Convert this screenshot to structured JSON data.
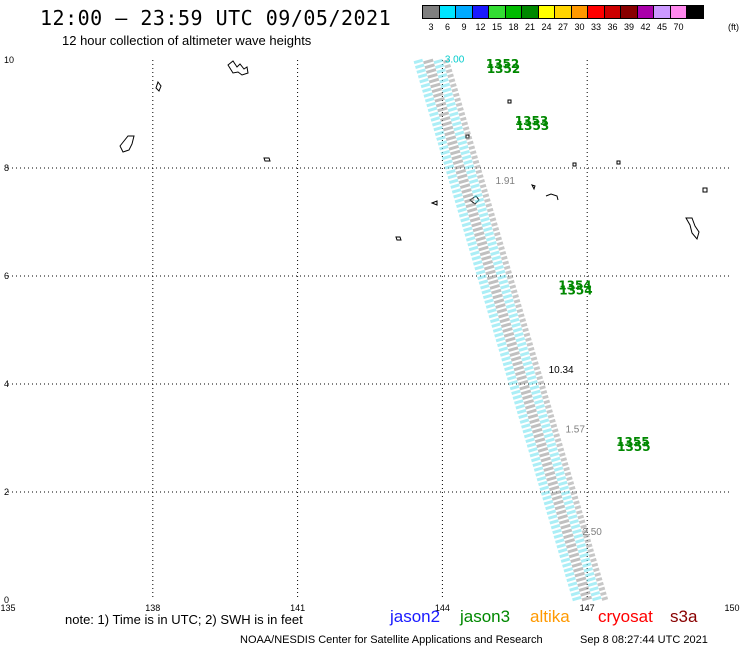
{
  "header": {
    "title": "12:00 – 23:59 UTC 09/05/2021",
    "subtitle": "12 hour collection of altimeter wave heights"
  },
  "colorbar": {
    "unit": "(ft)",
    "items": [
      {
        "label": "3",
        "color": "#7f7f7f"
      },
      {
        "label": "6",
        "color": "#00e5ff"
      },
      {
        "label": "9",
        "color": "#00aaff"
      },
      {
        "label": "12",
        "color": "#1a1aff"
      },
      {
        "label": "15",
        "color": "#33dd33"
      },
      {
        "label": "18",
        "color": "#00bb00"
      },
      {
        "label": "21",
        "color": "#008800"
      },
      {
        "label": "24",
        "color": "#ffff00"
      },
      {
        "label": "27",
        "color": "#ffd400"
      },
      {
        "label": "30",
        "color": "#ff9900"
      },
      {
        "label": "33",
        "color": "#ff0000"
      },
      {
        "label": "36",
        "color": "#cc0000"
      },
      {
        "label": "39",
        "color": "#880000"
      },
      {
        "label": "42",
        "color": "#aa00aa"
      },
      {
        "label": "45",
        "color": "#cc99ff"
      },
      {
        "label": "70",
        "color": "#ff88ee"
      },
      {
        "label": "",
        "color": "#000000"
      }
    ]
  },
  "map": {
    "lon_ticks": [
      "135",
      "138",
      "141",
      "144",
      "147",
      "150"
    ],
    "lat_ticks": [
      "0",
      "2",
      "4",
      "6",
      "8",
      "10"
    ],
    "lon_range": [
      135,
      150
    ],
    "lat_range": [
      0,
      10
    ],
    "grid": true,
    "pass_labels": [
      {
        "text": "1352",
        "lon": 144.9,
        "lat": 9.85
      },
      {
        "text": "1353",
        "lon": 145.5,
        "lat": 8.8
      },
      {
        "text": "1354",
        "lon": 146.4,
        "lat": 5.75
      },
      {
        "text": "1355",
        "lon": 147.6,
        "lat": 2.85
      }
    ],
    "value_labels": [
      {
        "text": "3.00",
        "lon": 144.05,
        "lat": 9.95,
        "color": "#00cccc"
      },
      {
        "text": "10.34",
        "lon": 146.2,
        "lat": 4.2,
        "color": "#000000"
      },
      {
        "text": "1.57",
        "lon": 146.55,
        "lat": 3.1,
        "color": "#7f7f7f"
      },
      {
        "text": "2.50",
        "lon": 146.9,
        "lat": 1.2,
        "color": "#7f7f7f"
      },
      {
        "text": "1.91",
        "lon": 145.1,
        "lat": 7.7,
        "color": "#7f7f7f"
      }
    ],
    "track": {
      "start_lon": 143.7,
      "start_lat": 10.0,
      "end_lon": 147.0,
      "end_lat": 0.0
    }
  },
  "footer": {
    "note": "note:  1) Time is in UTC;  2) SWH is in feet",
    "legend": [
      {
        "name": "jason2",
        "color": "#1a1aff"
      },
      {
        "name": "jason3",
        "color": "#008800"
      },
      {
        "name": "altika",
        "color": "#ff9900"
      },
      {
        "name": "cryosat",
        "color": "#ff0000"
      },
      {
        "name": "s3a",
        "color": "#880000"
      }
    ],
    "credit": "NOAA/NESDIS Center for Satellite Applications and Research",
    "timestamp": "Sep  8 08:27:44 UTC 2021"
  }
}
